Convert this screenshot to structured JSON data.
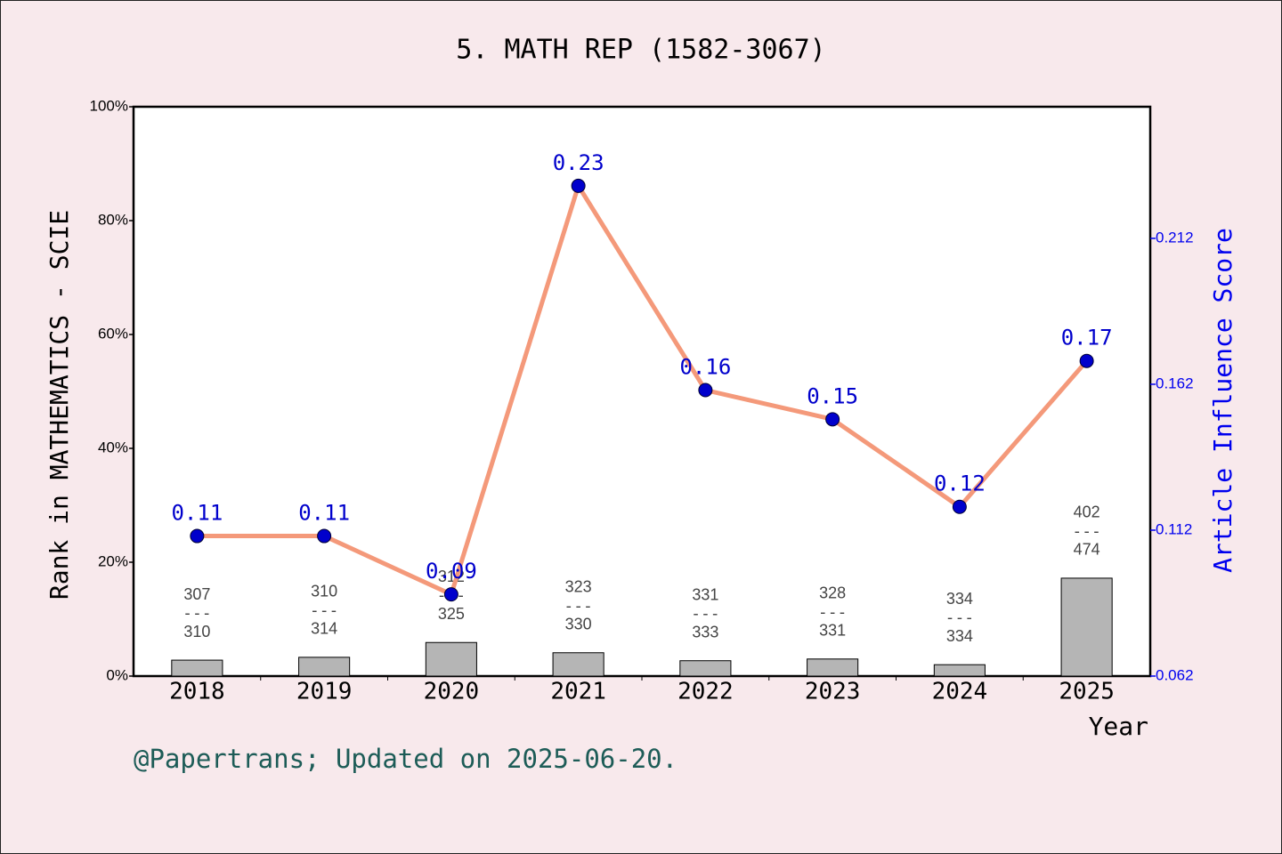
{
  "chart_data": {
    "type": "combo",
    "title": "5. MATH REP (1582-3067)",
    "x_label": "Year",
    "y_label": "Rank in MATHEMATICS - SCIE",
    "y2_label": "Article Influence Score",
    "footer": "@Papertrans; Updated on 2025-06-20.",
    "categories": [
      "2018",
      "2019",
      "2020",
      "2021",
      "2022",
      "2023",
      "2024",
      "2025"
    ],
    "series": [
      {
        "type": "bar",
        "color": "#b5b5b5",
        "values": [
          2.8,
          3.3,
          5.9,
          4.1,
          2.7,
          3.0,
          2.0,
          17.2
        ]
      },
      {
        "type": "line",
        "axis": "y2",
        "color": "#f4997a",
        "marker_color": "#0000cc",
        "values": [
          0.11,
          0.11,
          0.09,
          0.23,
          0.16,
          0.15,
          0.12,
          0.17
        ]
      }
    ],
    "rank_labels": [
      {
        "rank": "307",
        "total": "310"
      },
      {
        "rank": "310",
        "total": "314"
      },
      {
        "rank": "312",
        "total": "325"
      },
      {
        "rank": "323",
        "total": "330"
      },
      {
        "rank": "331",
        "total": "333"
      },
      {
        "rank": "328",
        "total": "331"
      },
      {
        "rank": "334",
        "total": "334"
      },
      {
        "rank": "402",
        "total": "474"
      }
    ],
    "rank_separator": "---",
    "ylim": [
      0,
      100
    ],
    "yticks": [
      {
        "value": 0,
        "label": "0%"
      },
      {
        "value": 20,
        "label": "20%"
      },
      {
        "value": 40,
        "label": "40%"
      },
      {
        "value": 60,
        "label": "60%"
      },
      {
        "value": 80,
        "label": "80%"
      },
      {
        "value": 100,
        "label": "100%"
      }
    ],
    "y2lim": [
      0.062,
      0.2571
    ],
    "y2ticks": [
      0.062,
      0.112,
      0.162,
      0.212
    ],
    "y2_color": "#0000ee"
  }
}
